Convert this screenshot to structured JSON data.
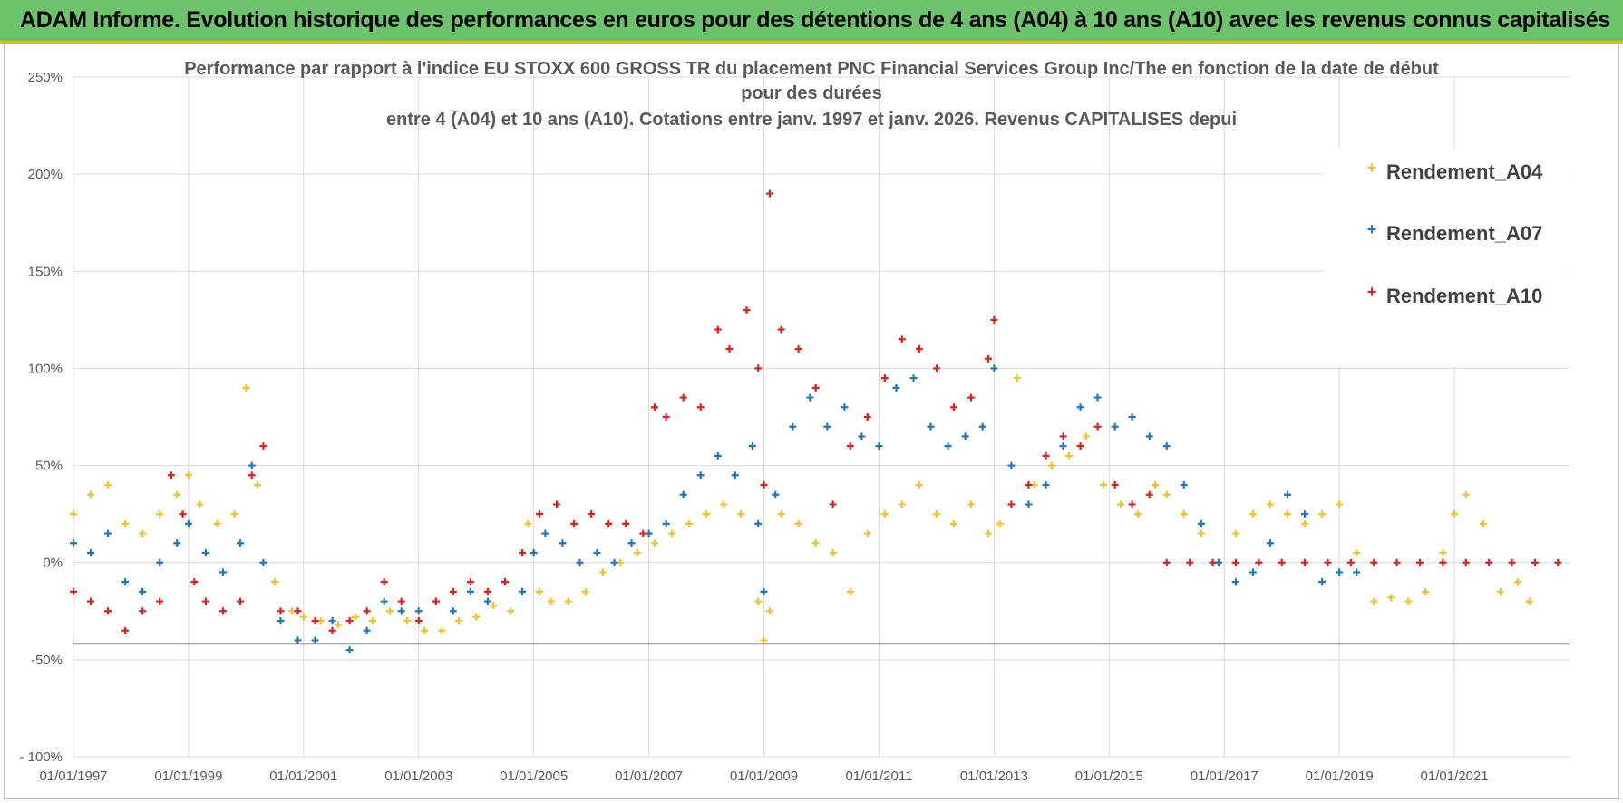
{
  "header": {
    "title": "ADAM Informe. Evolution historique des performances en euros pour des détentions de 4 ans (A04) à 10 ans (A10) avec les revenus connus capitalisés"
  },
  "chart_data": {
    "type": "scatter",
    "title_lines": [
      "Performance par rapport à l'indice EU STOXX 600 GROSS TR  du placement PNC Financial Services  Group Inc/The en fonction de la date de début",
      "pour des durées",
      "entre 4 (A04) et 10 ans (A10). Cotations entre janv. 1997 et janv. 2026. Revenus CAPITALISES depui"
    ],
    "x_range": [
      1997.0,
      2023.0
    ],
    "y_range": [
      -100,
      250
    ],
    "y_ticks": [
      {
        "value": 250,
        "label": "250%"
      },
      {
        "value": 200,
        "label": "200%"
      },
      {
        "value": 150,
        "label": "150%"
      },
      {
        "value": 100,
        "label": "100%"
      },
      {
        "value": 50,
        "label": "50%"
      },
      {
        "value": 0,
        "label": "0%"
      },
      {
        "value": -50,
        "label": "-50%"
      },
      {
        "value": -100,
        "label": "- 100%"
      }
    ],
    "x_ticks": [
      {
        "value": 1997,
        "label": "01/01/1997"
      },
      {
        "value": 1999,
        "label": "01/01/1999"
      },
      {
        "value": 2001,
        "label": "01/01/2001"
      },
      {
        "value": 2003,
        "label": "01/01/2003"
      },
      {
        "value": 2005,
        "label": "01/01/2005"
      },
      {
        "value": 2007,
        "label": "01/01/2007"
      },
      {
        "value": 2009,
        "label": "01/01/2009"
      },
      {
        "value": 2011,
        "label": "01/01/2011"
      },
      {
        "value": 2013,
        "label": "01/01/2013"
      },
      {
        "value": 2015,
        "label": "01/01/2015"
      },
      {
        "value": 2017,
        "label": "01/01/2017"
      },
      {
        "value": 2019,
        "label": "01/01/2019"
      },
      {
        "value": 2021,
        "label": "01/01/2021"
      }
    ],
    "reference_line_value": -42,
    "legend_position": "top-right",
    "series": [
      {
        "name": "Rendement_A04",
        "color": "#f2c12e",
        "x": [
          1997.0,
          1997.3,
          1997.6,
          1997.9,
          1998.2,
          1998.5,
          1998.8,
          1999.0,
          1999.2,
          1999.5,
          1999.8,
          2000.0,
          2000.2,
          2000.5,
          2000.8,
          2001.0,
          2001.3,
          2001.6,
          2001.9,
          2002.2,
          2002.5,
          2002.8,
          2003.1,
          2003.4,
          2003.7,
          2004.0,
          2004.3,
          2004.6,
          2004.9,
          2005.1,
          2005.3,
          2005.6,
          2005.9,
          2006.2,
          2006.5,
          2006.8,
          2007.1,
          2007.4,
          2007.7,
          2008.0,
          2008.3,
          2008.6,
          2008.9,
          2009.0,
          2009.1,
          2009.3,
          2009.6,
          2009.9,
          2010.2,
          2010.5,
          2010.8,
          2011.1,
          2011.4,
          2011.7,
          2012.0,
          2012.3,
          2012.6,
          2012.9,
          2013.1,
          2013.4,
          2013.7,
          2014.0,
          2014.3,
          2014.6,
          2014.9,
          2015.2,
          2015.5,
          2015.8,
          2016.0,
          2016.3,
          2016.6,
          2016.9,
          2017.2,
          2017.5,
          2017.8,
          2018.1,
          2018.4,
          2018.7,
          2019.0,
          2019.3,
          2019.6,
          2019.9,
          2020.2,
          2020.5,
          2020.8,
          2021.0,
          2021.2,
          2021.5,
          2021.8,
          2022.1,
          2022.3
        ],
        "y": [
          25,
          35,
          40,
          20,
          15,
          25,
          35,
          45,
          30,
          20,
          25,
          90,
          40,
          -10,
          -25,
          -28,
          -30,
          -32,
          -28,
          -30,
          -25,
          -30,
          -35,
          -35,
          -30,
          -28,
          -22,
          -25,
          20,
          -15,
          -20,
          -20,
          -15,
          -5,
          0,
          5,
          10,
          15,
          20,
          25,
          30,
          25,
          -20,
          -40,
          -25,
          25,
          20,
          10,
          5,
          -15,
          15,
          25,
          30,
          40,
          25,
          20,
          30,
          15,
          20,
          95,
          40,
          50,
          55,
          65,
          40,
          30,
          25,
          40,
          35,
          25,
          15,
          0,
          15,
          25,
          30,
          25,
          20,
          25,
          30,
          5,
          -20,
          -18,
          -20,
          -15,
          5,
          25,
          35,
          20,
          -15,
          -10,
          -20
        ]
      },
      {
        "name": "Rendement_A07",
        "color": "#1f77c4",
        "x": [
          1997.0,
          1997.3,
          1997.6,
          1997.9,
          1998.2,
          1998.5,
          1998.8,
          1999.0,
          1999.3,
          1999.6,
          1999.9,
          2000.1,
          2000.3,
          2000.6,
          2000.9,
          2001.2,
          2001.5,
          2001.8,
          2002.1,
          2002.4,
          2002.7,
          2003.0,
          2003.3,
          2003.6,
          2003.9,
          2004.2,
          2004.5,
          2004.8,
          2005.0,
          2005.2,
          2005.5,
          2005.8,
          2006.1,
          2006.4,
          2006.7,
          2007.0,
          2007.3,
          2007.6,
          2007.9,
          2008.2,
          2008.5,
          2008.8,
          2008.9,
          2009.0,
          2009.2,
          2009.5,
          2009.8,
          2010.1,
          2010.4,
          2010.7,
          2011.0,
          2011.3,
          2011.6,
          2011.9,
          2012.2,
          2012.5,
          2012.8,
          2013.0,
          2013.3,
          2013.6,
          2013.9,
          2014.2,
          2014.5,
          2014.8,
          2015.1,
          2015.4,
          2015.7,
          2016.0,
          2016.3,
          2016.6,
          2016.9,
          2017.2,
          2017.5,
          2017.8,
          2018.1,
          2018.4,
          2018.7,
          2019.0,
          2019.3
        ],
        "y": [
          10,
          5,
          15,
          -10,
          -15,
          0,
          10,
          20,
          5,
          -5,
          10,
          50,
          0,
          -30,
          -40,
          -40,
          -30,
          -45,
          -35,
          -20,
          -25,
          -25,
          -20,
          -25,
          -15,
          -20,
          -10,
          -15,
          5,
          15,
          10,
          0,
          5,
          0,
          10,
          15,
          20,
          35,
          45,
          55,
          45,
          60,
          20,
          -15,
          35,
          70,
          85,
          70,
          80,
          65,
          60,
          90,
          95,
          70,
          60,
          65,
          70,
          100,
          50,
          30,
          40,
          60,
          80,
          85,
          70,
          75,
          65,
          60,
          40,
          20,
          0,
          -10,
          -5,
          10,
          35,
          25,
          -10,
          -5,
          -5
        ]
      },
      {
        "name": "Rendement_A10",
        "color": "#e0201f",
        "x": [
          1997.0,
          1997.3,
          1997.6,
          1997.9,
          1998.2,
          1998.5,
          1998.7,
          1998.9,
          1999.1,
          1999.3,
          1999.6,
          1999.9,
          2000.1,
          2000.3,
          2000.6,
          2000.9,
          2001.2,
          2001.5,
          2001.8,
          2002.1,
          2002.4,
          2002.7,
          2003.0,
          2003.3,
          2003.6,
          2003.9,
          2004.2,
          2004.5,
          2004.8,
          2005.1,
          2005.4,
          2005.7,
          2006.0,
          2006.3,
          2006.6,
          2006.9,
          2007.1,
          2007.3,
          2007.6,
          2007.9,
          2008.2,
          2008.4,
          2008.7,
          2008.9,
          2009.0,
          2009.1,
          2009.3,
          2009.6,
          2009.9,
          2010.2,
          2010.5,
          2010.8,
          2011.1,
          2011.4,
          2011.7,
          2012.0,
          2012.3,
          2012.6,
          2012.9,
          2013.0,
          2013.3,
          2013.6,
          2013.9,
          2014.2,
          2014.5,
          2014.8,
          2015.1,
          2015.4,
          2015.7,
          2016.0,
          2016.4,
          2016.8,
          2017.2,
          2017.6,
          2018.0,
          2018.4,
          2018.8,
          2019.2,
          2019.6,
          2020.0,
          2020.4,
          2020.8,
          2021.2,
          2021.6,
          2022.0,
          2022.4,
          2022.8
        ],
        "y": [
          -15,
          -20,
          -25,
          -35,
          -25,
          -20,
          45,
          25,
          -10,
          -20,
          -25,
          -20,
          45,
          60,
          -25,
          -25,
          -30,
          -35,
          -30,
          -25,
          -10,
          -20,
          -30,
          -20,
          -15,
          -10,
          -15,
          -10,
          5,
          25,
          30,
          20,
          25,
          20,
          20,
          15,
          80,
          75,
          85,
          80,
          120,
          110,
          130,
          100,
          40,
          190,
          120,
          110,
          90,
          30,
          60,
          75,
          95,
          115,
          110,
          100,
          80,
          85,
          105,
          125,
          30,
          40,
          55,
          65,
          60,
          70,
          40,
          30,
          35,
          0,
          0,
          0,
          0,
          0,
          0,
          0,
          0,
          0,
          0,
          0,
          0,
          0,
          0,
          0,
          0,
          0,
          0
        ]
      }
    ]
  }
}
